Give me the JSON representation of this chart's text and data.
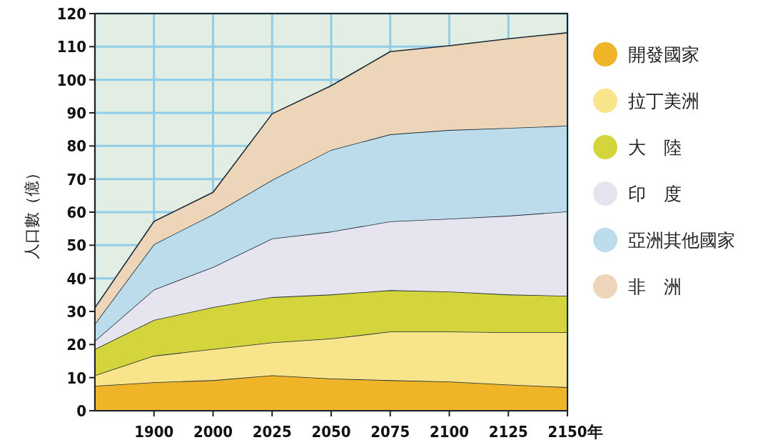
{
  "chart_data": {
    "type": "area",
    "stacked": true,
    "ylabel": "人口數（億）",
    "xlabel": "年",
    "categories": [
      null,
      "1900",
      "2000",
      "2025",
      "2050",
      "2075",
      "2100",
      "2125",
      "2150"
    ],
    "ylim": [
      0,
      120
    ],
    "yticks": [
      0,
      10,
      20,
      30,
      40,
      50,
      60,
      70,
      80,
      90,
      100,
      110,
      120
    ],
    "grid": true,
    "legend": "right",
    "series": [
      {
        "name": "開發國家",
        "color": "#f0b428",
        "values": [
          7.5,
          8.6,
          9.2,
          10.7,
          9.7,
          9.2,
          8.8,
          7.9,
          7.1
        ]
      },
      {
        "name": "拉丁美洲",
        "color": "#f8e48a",
        "values": [
          3.2,
          8.0,
          9.4,
          9.9,
          12.1,
          14.7,
          15.1,
          15.8,
          16.6
        ]
      },
      {
        "name": "大　陸",
        "color": "#d4d43c",
        "values": [
          7.9,
          10.8,
          12.7,
          13.7,
          13.3,
          12.5,
          12.1,
          11.4,
          11.0
        ]
      },
      {
        "name": "印　度",
        "color": "#e6e4ee",
        "values": [
          2.5,
          9.2,
          12.1,
          17.7,
          19.0,
          20.8,
          22.0,
          23.8,
          25.5
        ]
      },
      {
        "name": "亞洲其他國家",
        "color": "#bcdcec",
        "values": [
          5.1,
          13.7,
          15.9,
          17.7,
          24.7,
          26.3,
          26.8,
          26.5,
          25.9
        ]
      },
      {
        "name": "非　洲",
        "color": "#ecd5b8",
        "values": [
          4.9,
          6.9,
          6.7,
          20.0,
          19.4,
          25.0,
          25.5,
          27.0,
          28.1
        ]
      }
    ]
  }
}
